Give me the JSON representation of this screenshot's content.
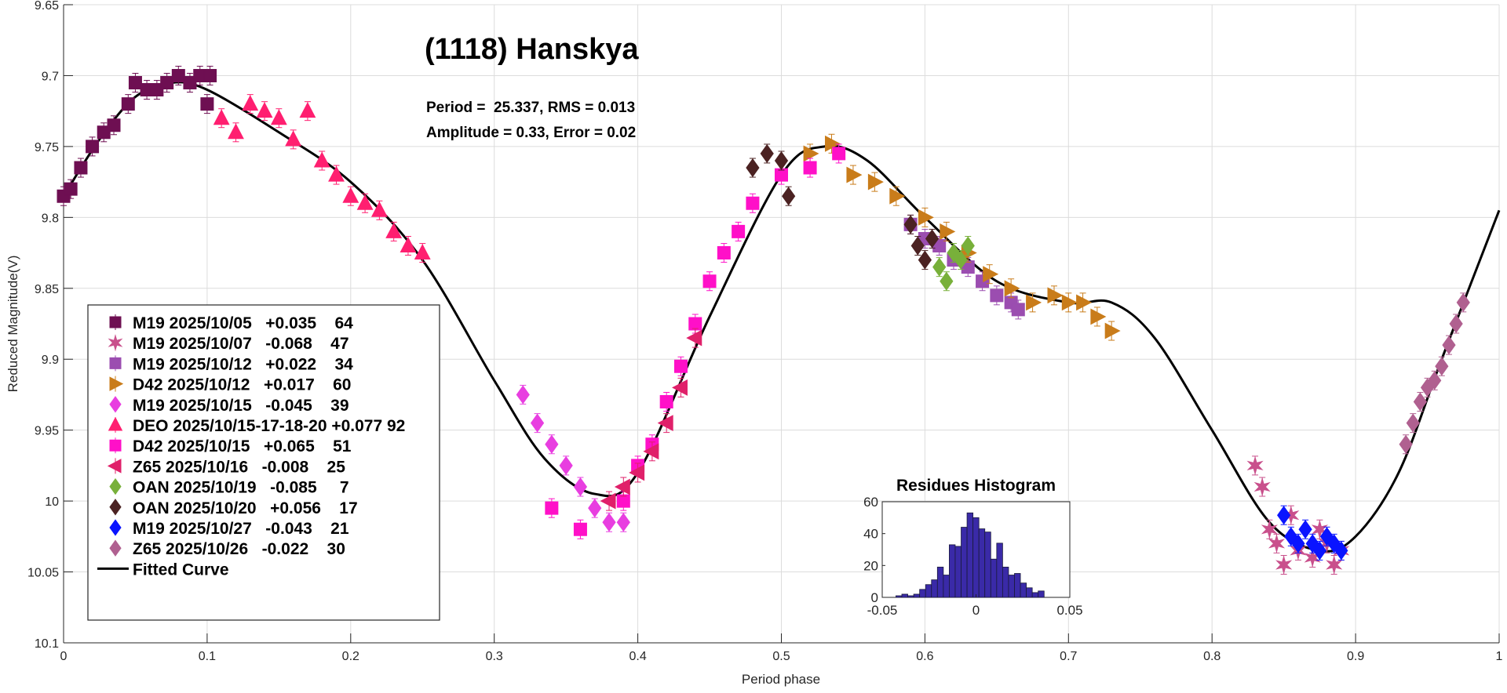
{
  "chart_data": {
    "type": "scatter",
    "title": "(1118) Hanskya",
    "annotations": [
      "Period =  25.337, RMS = 0.013",
      "Amplitude = 0.33, Error = 0.02"
    ],
    "xlabel": "Period phase",
    "ylabel": "Reduced Magnitude(V)",
    "xlim": [
      0,
      1
    ],
    "ylim": [
      9.65,
      10.1
    ],
    "y_reversed": true,
    "grid": true,
    "xticks": [
      "0",
      "0.1",
      "0.2",
      "0.3",
      "0.4",
      "0.5",
      "0.6",
      "0.7",
      "0.8",
      "0.9",
      "1"
    ],
    "yticks": [
      "9.65",
      "9.7",
      "9.75",
      "9.8",
      "9.85",
      "9.9",
      "9.95",
      "10",
      "10.05",
      "10.1"
    ],
    "legend_placement": "bottom-left",
    "series": [
      {
        "name": "M19 2025/10/05   +0.035    64",
        "marker": "square",
        "color": "#6e0f52",
        "points": [
          [
            0.0,
            9.785
          ],
          [
            0.005,
            9.78
          ],
          [
            0.012,
            9.765
          ],
          [
            0.02,
            9.75
          ],
          [
            0.028,
            9.74
          ],
          [
            0.035,
            9.735
          ],
          [
            0.045,
            9.72
          ],
          [
            0.05,
            9.705
          ],
          [
            0.058,
            9.71
          ],
          [
            0.065,
            9.71
          ],
          [
            0.072,
            9.705
          ],
          [
            0.08,
            9.7
          ],
          [
            0.088,
            9.705
          ],
          [
            0.095,
            9.7
          ],
          [
            0.1,
            9.72
          ],
          [
            0.102,
            9.7
          ]
        ]
      },
      {
        "name": "M19 2025/10/07   -0.068    47",
        "marker": "star",
        "color": "#c9508c",
        "points": [
          [
            0.83,
            9.975
          ],
          [
            0.835,
            9.99
          ],
          [
            0.84,
            10.02
          ],
          [
            0.845,
            10.03
          ],
          [
            0.85,
            10.045
          ],
          [
            0.855,
            10.01
          ],
          [
            0.86,
            10.035
          ],
          [
            0.87,
            10.04
          ],
          [
            0.875,
            10.02
          ],
          [
            0.88,
            10.03
          ],
          [
            0.885,
            10.045
          ],
          [
            0.89,
            10.035
          ]
        ]
      },
      {
        "name": "M19 2025/10/12   +0.022    34",
        "marker": "square",
        "color": "#9b4db0",
        "points": [
          [
            0.59,
            9.805
          ],
          [
            0.6,
            9.815
          ],
          [
            0.61,
            9.82
          ],
          [
            0.62,
            9.83
          ],
          [
            0.63,
            9.835
          ],
          [
            0.64,
            9.845
          ],
          [
            0.65,
            9.855
          ],
          [
            0.66,
            9.86
          ],
          [
            0.665,
            9.865
          ]
        ]
      },
      {
        "name": "D42 2025/10/12   +0.017    60",
        "marker": "triangle-right",
        "color": "#c97c1a",
        "points": [
          [
            0.52,
            9.755
          ],
          [
            0.535,
            9.748
          ],
          [
            0.55,
            9.77
          ],
          [
            0.565,
            9.775
          ],
          [
            0.58,
            9.785
          ],
          [
            0.6,
            9.8
          ],
          [
            0.615,
            9.81
          ],
          [
            0.63,
            9.825
          ],
          [
            0.645,
            9.84
          ],
          [
            0.66,
            9.85
          ],
          [
            0.675,
            9.86
          ],
          [
            0.69,
            9.855
          ],
          [
            0.7,
            9.86
          ],
          [
            0.71,
            9.86
          ],
          [
            0.72,
            9.87
          ],
          [
            0.73,
            9.88
          ]
        ]
      },
      {
        "name": "M19 2025/10/15   -0.045    39",
        "marker": "diamond",
        "color": "#e83ee0",
        "points": [
          [
            0.32,
            9.925
          ],
          [
            0.33,
            9.945
          ],
          [
            0.34,
            9.96
          ],
          [
            0.35,
            9.975
          ],
          [
            0.36,
            9.99
          ],
          [
            0.37,
            10.005
          ],
          [
            0.38,
            10.015
          ],
          [
            0.39,
            10.015
          ]
        ]
      },
      {
        "name": "DEO 2025/10/15-17-18-20 +0.077 92",
        "marker": "triangle-up",
        "color": "#ff1f70",
        "points": [
          [
            0.11,
            9.73
          ],
          [
            0.12,
            9.74
          ],
          [
            0.13,
            9.72
          ],
          [
            0.14,
            9.725
          ],
          [
            0.15,
            9.73
          ],
          [
            0.16,
            9.745
          ],
          [
            0.17,
            9.725
          ],
          [
            0.18,
            9.76
          ],
          [
            0.19,
            9.77
          ],
          [
            0.2,
            9.785
          ],
          [
            0.21,
            9.79
          ],
          [
            0.22,
            9.795
          ],
          [
            0.23,
            9.81
          ],
          [
            0.24,
            9.82
          ],
          [
            0.25,
            9.825
          ]
        ]
      },
      {
        "name": "D42 2025/10/15   +0.065    51",
        "marker": "square",
        "color": "#ff10c8",
        "points": [
          [
            0.34,
            10.005
          ],
          [
            0.36,
            10.02
          ],
          [
            0.39,
            10.0
          ],
          [
            0.4,
            9.975
          ],
          [
            0.41,
            9.96
          ],
          [
            0.42,
            9.93
          ],
          [
            0.43,
            9.905
          ],
          [
            0.44,
            9.875
          ],
          [
            0.45,
            9.845
          ],
          [
            0.46,
            9.825
          ],
          [
            0.47,
            9.81
          ],
          [
            0.48,
            9.79
          ],
          [
            0.5,
            9.77
          ],
          [
            0.52,
            9.765
          ],
          [
            0.54,
            9.755
          ]
        ]
      },
      {
        "name": "Z65 2025/10/16   -0.008    25",
        "marker": "triangle-left",
        "color": "#e0206a",
        "points": [
          [
            0.38,
            10.0
          ],
          [
            0.39,
            9.99
          ],
          [
            0.4,
            9.98
          ],
          [
            0.41,
            9.965
          ],
          [
            0.42,
            9.945
          ],
          [
            0.43,
            9.92
          ],
          [
            0.44,
            9.885
          ]
        ]
      },
      {
        "name": "OAN 2025/10/19   -0.085     7",
        "marker": "diamond",
        "color": "#78b03a",
        "points": [
          [
            0.61,
            9.835
          ],
          [
            0.615,
            9.845
          ],
          [
            0.62,
            9.825
          ],
          [
            0.625,
            9.83
          ],
          [
            0.63,
            9.82
          ]
        ]
      },
      {
        "name": "OAN 2025/10/20   +0.056    17",
        "marker": "diamond",
        "color": "#4b2222",
        "points": [
          [
            0.48,
            9.765
          ],
          [
            0.49,
            9.755
          ],
          [
            0.5,
            9.76
          ],
          [
            0.505,
            9.785
          ],
          [
            0.59,
            9.805
          ],
          [
            0.595,
            9.82
          ],
          [
            0.6,
            9.83
          ],
          [
            0.605,
            9.815
          ]
        ]
      },
      {
        "name": "M19 2025/10/27   -0.043    21",
        "marker": "diamond",
        "color": "#0a14ff",
        "points": [
          [
            0.85,
            10.01
          ],
          [
            0.855,
            10.025
          ],
          [
            0.86,
            10.03
          ],
          [
            0.865,
            10.02
          ],
          [
            0.87,
            10.03
          ],
          [
            0.875,
            10.035
          ],
          [
            0.88,
            10.025
          ],
          [
            0.885,
            10.03
          ],
          [
            0.89,
            10.035
          ]
        ]
      },
      {
        "name": "Z65 2025/10/26   -0.022    30",
        "marker": "diamond",
        "color": "#b06090",
        "points": [
          [
            0.935,
            9.96
          ],
          [
            0.94,
            9.945
          ],
          [
            0.945,
            9.93
          ],
          [
            0.95,
            9.92
          ],
          [
            0.955,
            9.915
          ],
          [
            0.96,
            9.905
          ],
          [
            0.965,
            9.89
          ],
          [
            0.97,
            9.875
          ],
          [
            0.975,
            9.86
          ]
        ]
      }
    ],
    "fitted_curve": {
      "name": "Fitted Curve",
      "color": "#000000",
      "points": [
        [
          0,
          9.785
        ],
        [
          0.025,
          9.745
        ],
        [
          0.05,
          9.715
        ],
        [
          0.075,
          9.705
        ],
        [
          0.1,
          9.71
        ],
        [
          0.15,
          9.74
        ],
        [
          0.2,
          9.775
        ],
        [
          0.25,
          9.83
        ],
        [
          0.3,
          9.915
        ],
        [
          0.335,
          9.97
        ],
        [
          0.37,
          9.995
        ],
        [
          0.4,
          9.98
        ],
        [
          0.45,
          9.87
        ],
        [
          0.5,
          9.77
        ],
        [
          0.53,
          9.75
        ],
        [
          0.56,
          9.76
        ],
        [
          0.6,
          9.8
        ],
        [
          0.65,
          9.845
        ],
        [
          0.7,
          9.86
        ],
        [
          0.73,
          9.86
        ],
        [
          0.76,
          9.885
        ],
        [
          0.8,
          9.95
        ],
        [
          0.84,
          10.015
        ],
        [
          0.875,
          10.035
        ],
        [
          0.9,
          10.025
        ],
        [
          0.93,
          9.98
        ],
        [
          0.96,
          9.9
        ],
        [
          1.0,
          9.795
        ]
      ]
    },
    "inset_histogram": {
      "type": "bar",
      "title": "Residues Histogram",
      "xlim": [
        -0.05,
        0.05
      ],
      "ylim": [
        0,
        60
      ],
      "xticks": [
        "-0.05",
        "0",
        "0.05"
      ],
      "yticks": [
        "0",
        "20",
        "40",
        "60"
      ],
      "bin_start": -0.0427,
      "bin_width": 0.00316,
      "values": [
        1,
        2,
        1,
        2,
        5,
        8,
        11,
        19,
        14,
        33,
        32,
        44,
        53,
        50,
        43,
        41,
        24,
        34,
        19,
        14,
        15,
        9,
        6,
        3,
        4
      ],
      "color": "#3a2aa8"
    }
  }
}
